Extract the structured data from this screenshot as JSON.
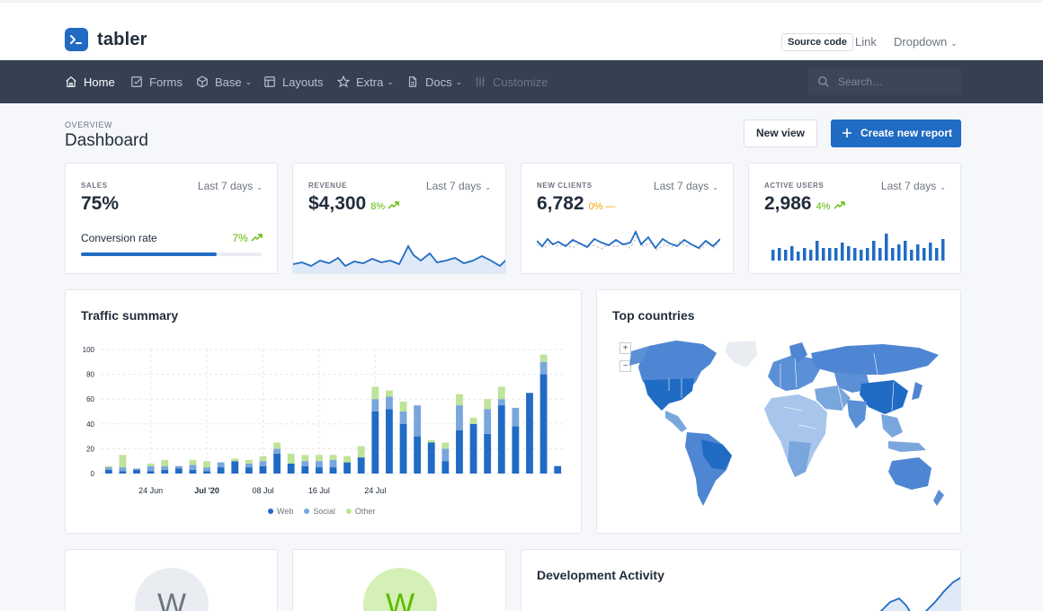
{
  "header": {
    "brand": "tabler",
    "source_button": "Source code",
    "link": "Link",
    "dropdown": "Dropdown"
  },
  "nav": {
    "items": [
      {
        "label": "Home",
        "icon": "home-icon",
        "state": "active"
      },
      {
        "label": "Forms",
        "icon": "checkbox-icon"
      },
      {
        "label": "Base",
        "icon": "package-icon",
        "caret": true
      },
      {
        "label": "Layouts",
        "icon": "layout-icon"
      },
      {
        "label": "Extra",
        "icon": "star-icon",
        "caret": true
      },
      {
        "label": "Docs",
        "icon": "file-icon",
        "caret": true
      },
      {
        "label": "Customize",
        "icon": "adjustments-icon",
        "state": "disabled"
      }
    ],
    "search_placeholder": "Search…"
  },
  "page": {
    "pretitle": "OVERVIEW",
    "title": "Dashboard",
    "new_view": "New view",
    "create_report": "Create new report"
  },
  "stats": {
    "sales": {
      "label": "SALES",
      "period": "Last 7 days",
      "value": "75%",
      "conversion_label": "Conversion rate",
      "conversion_pct": "7%",
      "progress": 0.75
    },
    "revenue": {
      "label": "REVENUE",
      "period": "Last 7 days",
      "value": "$4,300",
      "change": "8%",
      "trend": "up"
    },
    "new_clients": {
      "label": "NEW CLIENTS",
      "period": "Last 7 days",
      "value": "6,782",
      "change": "0%",
      "trend": "flat"
    },
    "active_users": {
      "label": "ACTIVE USERS",
      "period": "Last 7 days",
      "value": "2,986",
      "change": "4%",
      "trend": "up"
    }
  },
  "colors": {
    "primary": "#206bc4",
    "social": "#79a6dc",
    "other": "#bfe399",
    "success": "#5eba00",
    "warning": "#f59f00"
  },
  "traffic": {
    "title": "Traffic summary",
    "chart_data": {
      "type": "bar",
      "stacked": true,
      "ylim": [
        0,
        100
      ],
      "y_ticks": [
        0,
        20,
        40,
        60,
        80,
        100
      ],
      "x_tick_labels": [
        {
          "index": 3,
          "label": "24 Jun"
        },
        {
          "index": 7,
          "label": "Jul '20",
          "bold": true
        },
        {
          "index": 11,
          "label": "08 Jul"
        },
        {
          "index": 15,
          "label": "16 Jul"
        },
        {
          "index": 19,
          "label": "24 Jul"
        }
      ],
      "grid": true,
      "legend_position": "bottom",
      "series": [
        {
          "name": "Web",
          "values": [
            3,
            2,
            3,
            2,
            3,
            4,
            3,
            2,
            5,
            10,
            5,
            6,
            16,
            8,
            6,
            5,
            5,
            9,
            13,
            50,
            52,
            40,
            30,
            25,
            10,
            35,
            40,
            32,
            55,
            38,
            65,
            80,
            6
          ]
        },
        {
          "name": "Social",
          "values": [
            2,
            3,
            1,
            4,
            3,
            2,
            4,
            3,
            4,
            0,
            3,
            4,
            4,
            0,
            4,
            5,
            6,
            0,
            0,
            10,
            10,
            10,
            25,
            0,
            10,
            20,
            0,
            20,
            5,
            15,
            0,
            10,
            0
          ]
        },
        {
          "name": "Other",
          "values": [
            1,
            10,
            0,
            2,
            5,
            0,
            4,
            5,
            0,
            2,
            3,
            4,
            5,
            8,
            5,
            5,
            4,
            5,
            9,
            10,
            5,
            8,
            0,
            2,
            5,
            9,
            5,
            8,
            10,
            0,
            0,
            6,
            0
          ]
        }
      ]
    },
    "legend": [
      "Web",
      "Social",
      "Other"
    ]
  },
  "countries": {
    "title": "Top countries",
    "zoom_in": "+",
    "zoom_out": "−"
  },
  "bottom": {
    "avatar1": "W",
    "avatar2": "W",
    "dev_title": "Development Activity"
  }
}
